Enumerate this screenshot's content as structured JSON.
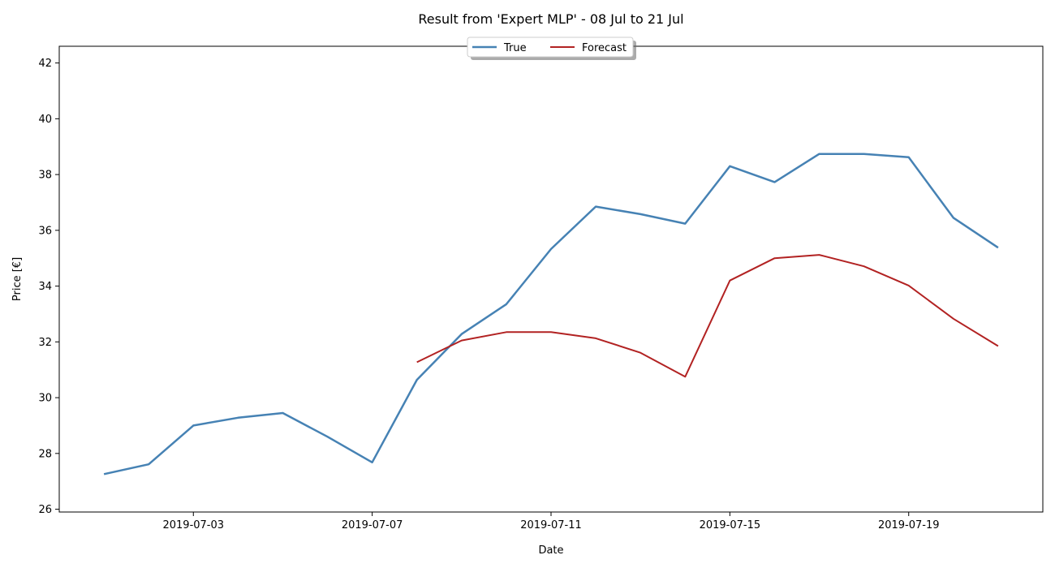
{
  "chart_data": {
    "type": "line",
    "title": "Result from 'Expert MLP' - 08 Jul to 21 Jul",
    "xlabel": "Date",
    "ylabel": "Price [€]",
    "xlim": [
      "2019-06-30",
      "2019-07-22"
    ],
    "ylim": [
      25.9,
      42.6
    ],
    "xticks": [
      "2019-07-03",
      "2019-07-07",
      "2019-07-11",
      "2019-07-15",
      "2019-07-19"
    ],
    "yticks": [
      26,
      28,
      30,
      32,
      34,
      36,
      38,
      40,
      42
    ],
    "grid": false,
    "legend": {
      "placement": "upper-center",
      "columns": 2
    },
    "series": [
      {
        "name": "True",
        "color": "#4682b4",
        "x": [
          "2019-07-01",
          "2019-07-02",
          "2019-07-03",
          "2019-07-04",
          "2019-07-05",
          "2019-07-06",
          "2019-07-07",
          "2019-07-08",
          "2019-07-09",
          "2019-07-10",
          "2019-07-11",
          "2019-07-12",
          "2019-07-13",
          "2019-07-14",
          "2019-07-15",
          "2019-07-16",
          "2019-07-17",
          "2019-07-18",
          "2019-07-19",
          "2019-07-20",
          "2019-07-21"
        ],
        "values": [
          27.26,
          27.61,
          29.0,
          29.28,
          29.45,
          28.6,
          27.68,
          30.64,
          32.28,
          33.35,
          35.33,
          36.85,
          36.58,
          36.24,
          38.3,
          37.73,
          38.74,
          38.74,
          38.62,
          36.45,
          35.38
        ]
      },
      {
        "name": "Forecast",
        "color": "#b22222",
        "x": [
          "2019-07-08",
          "2019-07-09",
          "2019-07-10",
          "2019-07-11",
          "2019-07-12",
          "2019-07-13",
          "2019-07-14",
          "2019-07-15",
          "2019-07-16",
          "2019-07-17",
          "2019-07-18",
          "2019-07-19",
          "2019-07-20",
          "2019-07-21"
        ],
        "values": [
          31.27,
          32.05,
          32.35,
          32.35,
          32.13,
          31.61,
          30.75,
          34.2,
          35.0,
          35.12,
          34.71,
          34.02,
          32.83,
          31.85
        ]
      }
    ]
  }
}
